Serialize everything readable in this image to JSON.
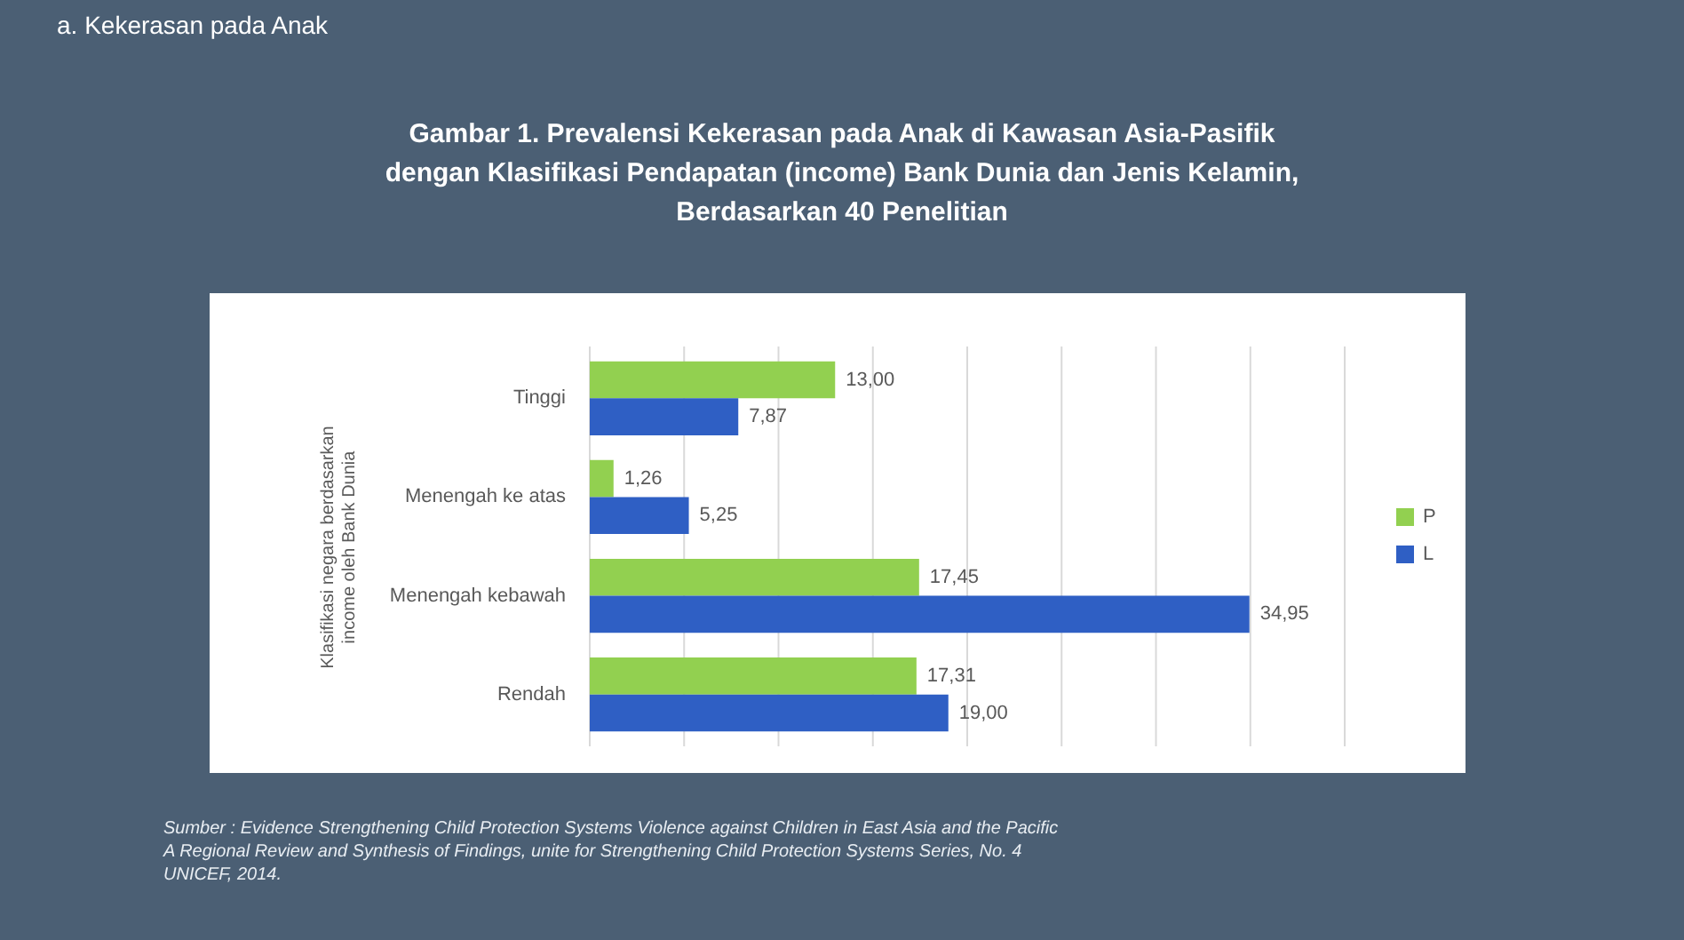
{
  "chart_data": {
    "type": "bar",
    "orientation": "horizontal",
    "title": [
      "Gambar 1. Prevalensi Kekerasan pada Anak di Kawasan Asia-Pasifik",
      "dengan Klasifikasi Pendapatan (income) Bank Dunia dan Jenis Kelamin,",
      "Berdasarkan 40 Penelitian"
    ],
    "ylabel": "Klasifikasi negara berdasarkan income oleh Bank Dunia",
    "categories": [
      "Tinggi",
      "Menengah ke atas",
      "Menengah kebawah",
      "Rendah"
    ],
    "series": [
      {
        "name": "P",
        "color": "#92d050",
        "values": [
          13.0,
          1.26,
          17.45,
          17.31
        ],
        "value_labels": [
          "13,00",
          "1,26",
          "17,45",
          "17,31"
        ]
      },
      {
        "name": "L",
        "color": "#2f5fc4",
        "values": [
          7.87,
          5.25,
          34.95,
          19.0
        ],
        "value_labels": [
          "7,87",
          "5,25",
          "34,95",
          "19,00"
        ]
      }
    ],
    "xlim": [
      0,
      40
    ],
    "xticks": [
      {
        "value": 0,
        "label": null
      },
      {
        "value": 5,
        "label": null
      },
      {
        "value": 10,
        "label": null
      },
      {
        "value": 15,
        "label": null
      },
      {
        "value": 20,
        "label": null
      },
      {
        "value": 25,
        "label": null
      },
      {
        "value": 30,
        "label": null
      },
      {
        "value": 35,
        "label": null
      },
      {
        "value": 40,
        "label": null
      }
    ],
    "tick_labels": "y",
    "grid": "x",
    "legend": "right",
    "annotations": [
      "a. Kekerasan pada Anak",
      "Sumber : Evidence Strengthening Child Protection Systems Violence against Children in East Asia and the Pacific A Regional Review and Synthesis of Findings, unite for Strengthening Child Protection Systems Series, No. 4 UNICEF, 2014."
    ]
  }
}
